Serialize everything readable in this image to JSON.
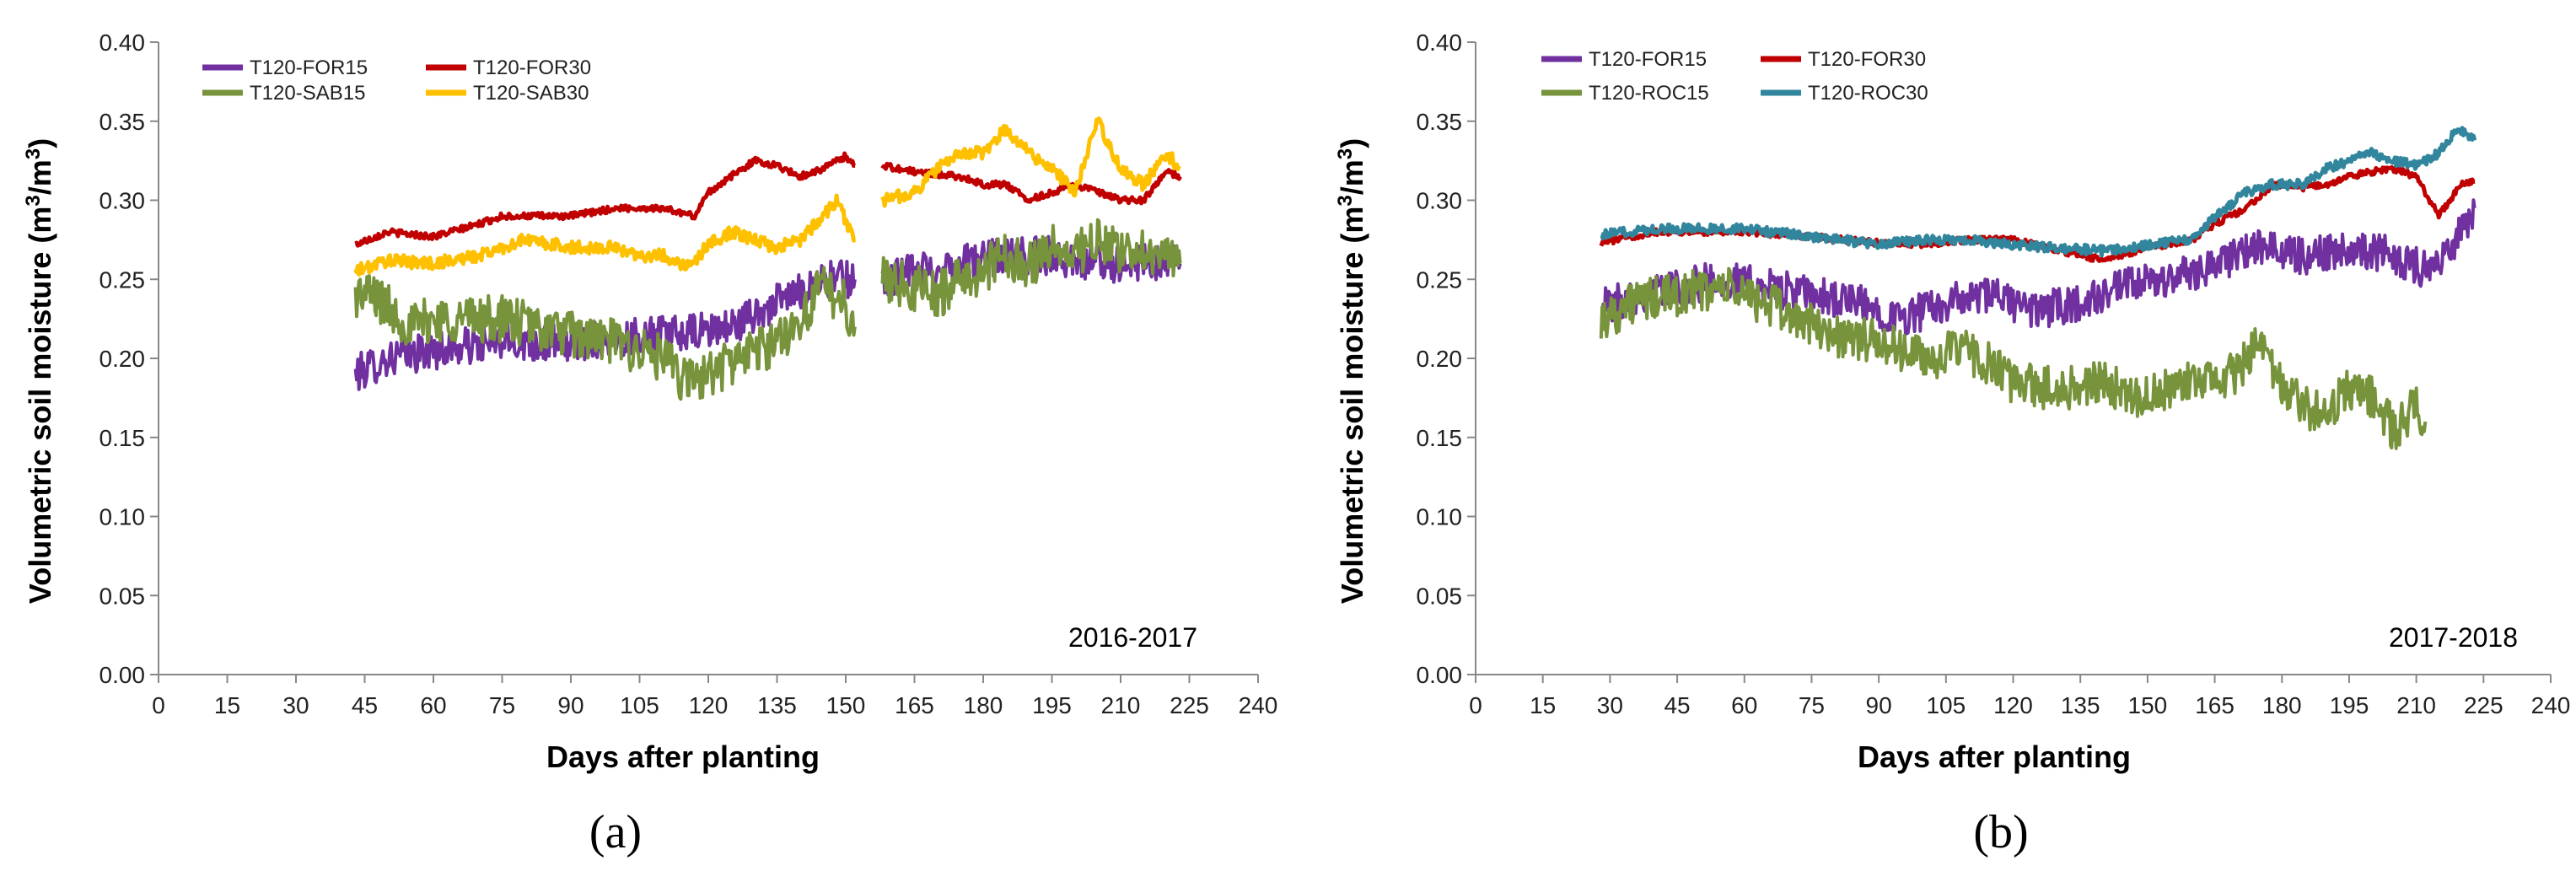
{
  "chart_data": [
    {
      "type": "line",
      "id": "a",
      "panel_label_text": "(a)",
      "annotation": "2016-2017",
      "xlabel": "Days after planting",
      "ylabel": "Volumetric soil moisture (m³/m³)",
      "ylabel_parts": {
        "main": "Volumetric  soil moisture  (m",
        "sup1": "3",
        "mid": "/m",
        "sup2": "3",
        "end": ")"
      },
      "xlim": [
        0,
        240
      ],
      "ylim": [
        0,
        0.4
      ],
      "x_ticks": [
        "0",
        "15",
        "30",
        "45",
        "60",
        "75",
        "90",
        "105",
        "120",
        "135",
        "150",
        "165",
        "180",
        "195",
        "210",
        "225",
        "240"
      ],
      "y_ticks": [
        "0.00",
        "0.05",
        "0.10",
        "0.15",
        "0.20",
        "0.25",
        "0.30",
        "0.35",
        "0.40"
      ],
      "legend": [
        "T120-FOR15",
        "T120-FOR30",
        "T120-SAB15",
        "T120-SAB30"
      ],
      "series": [
        {
          "name": "T120-FOR15",
          "color": "#7030a0",
          "amp": 0.012,
          "segments": [
            [
              [
                43,
                0.19
              ],
              [
                50,
                0.2
              ],
              [
                60,
                0.205
              ],
              [
                75,
                0.21
              ],
              [
                90,
                0.21
              ],
              [
                105,
                0.215
              ],
              [
                115,
                0.215
              ],
              [
                125,
                0.22
              ],
              [
                135,
                0.235
              ],
              [
                145,
                0.25
              ],
              [
                152,
                0.25
              ]
            ],
            [
              [
                158,
                0.25
              ],
              [
                165,
                0.255
              ],
              [
                175,
                0.26
              ],
              [
                185,
                0.265
              ],
              [
                195,
                0.265
              ],
              [
                205,
                0.26
              ],
              [
                215,
                0.26
              ],
              [
                223,
                0.26
              ]
            ]
          ]
        },
        {
          "name": "T120-FOR30",
          "color": "#c00000",
          "amp": 0.002,
          "segments": [
            [
              [
                43,
                0.272
              ],
              [
                50,
                0.28
              ],
              [
                60,
                0.277
              ],
              [
                70,
                0.285
              ],
              [
                75,
                0.29
              ],
              [
                90,
                0.29
              ],
              [
                100,
                0.295
              ],
              [
                110,
                0.295
              ],
              [
                117,
                0.29
              ],
              [
                120,
                0.305
              ],
              [
                125,
                0.315
              ],
              [
                130,
                0.325
              ],
              [
                135,
                0.322
              ],
              [
                140,
                0.315
              ],
              [
                145,
                0.32
              ],
              [
                150,
                0.328
              ],
              [
                152,
                0.322
              ]
            ],
            [
              [
                158,
                0.322
              ],
              [
                165,
                0.318
              ],
              [
                175,
                0.315
              ],
              [
                180,
                0.31
              ],
              [
                185,
                0.31
              ],
              [
                190,
                0.3
              ],
              [
                195,
                0.305
              ],
              [
                200,
                0.31
              ],
              [
                205,
                0.305
              ],
              [
                210,
                0.3
              ],
              [
                215,
                0.3
              ],
              [
                220,
                0.318
              ],
              [
                223,
                0.315
              ]
            ]
          ]
        },
        {
          "name": "T120-SAB15",
          "color": "#77933c",
          "amp": 0.015,
          "segments": [
            [
              [
                43,
                0.24
              ],
              [
                47,
                0.24
              ],
              [
                55,
                0.22
              ],
              [
                60,
                0.225
              ],
              [
                75,
                0.225
              ],
              [
                90,
                0.215
              ],
              [
                100,
                0.21
              ],
              [
                110,
                0.2
              ],
              [
                115,
                0.185
              ],
              [
                120,
                0.19
              ],
              [
                130,
                0.205
              ],
              [
                135,
                0.21
              ],
              [
                140,
                0.225
              ],
              [
                145,
                0.245
              ],
              [
                150,
                0.235
              ],
              [
                152,
                0.22
              ]
            ],
            [
              [
                158,
                0.25
              ],
              [
                165,
                0.245
              ],
              [
                170,
                0.24
              ],
              [
                175,
                0.25
              ],
              [
                180,
                0.255
              ],
              [
                185,
                0.265
              ],
              [
                190,
                0.26
              ],
              [
                195,
                0.27
              ],
              [
                200,
                0.265
              ],
              [
                205,
                0.275
              ],
              [
                210,
                0.265
              ],
              [
                215,
                0.27
              ],
              [
                220,
                0.265
              ],
              [
                223,
                0.26
              ]
            ]
          ]
        },
        {
          "name": "T120-SAB30",
          "color": "#ffc000",
          "amp": 0.004,
          "segments": [
            [
              [
                43,
                0.255
              ],
              [
                50,
                0.262
              ],
              [
                60,
                0.26
              ],
              [
                70,
                0.265
              ],
              [
                80,
                0.275
              ],
              [
                90,
                0.27
              ],
              [
                100,
                0.27
              ],
              [
                105,
                0.265
              ],
              [
                110,
                0.265
              ],
              [
                116,
                0.258
              ],
              [
                120,
                0.272
              ],
              [
                125,
                0.28
              ],
              [
                130,
                0.275
              ],
              [
                135,
                0.27
              ],
              [
                140,
                0.275
              ],
              [
                145,
                0.29
              ],
              [
                148,
                0.3
              ],
              [
                152,
                0.275
              ]
            ],
            [
              [
                158,
                0.3
              ],
              [
                165,
                0.305
              ],
              [
                170,
                0.32
              ],
              [
                175,
                0.33
              ],
              [
                180,
                0.33
              ],
              [
                185,
                0.345
              ],
              [
                190,
                0.33
              ],
              [
                195,
                0.32
              ],
              [
                200,
                0.305
              ],
              [
                205,
                0.35
              ],
              [
                210,
                0.32
              ],
              [
                215,
                0.31
              ],
              [
                220,
                0.33
              ],
              [
                223,
                0.32
              ]
            ]
          ]
        }
      ]
    },
    {
      "type": "line",
      "id": "b",
      "panel_label_text": "(b)",
      "annotation": "2017-2018",
      "xlabel": "Days after planting",
      "ylabel": "Volumetric soil moisture (m³/m³)",
      "ylabel_parts": {
        "main": "Volumetric  soil moisture  (m",
        "sup1": "3",
        "mid": "/m",
        "sup2": "3",
        "end": ")"
      },
      "xlim": [
        0,
        240
      ],
      "ylim": [
        0,
        0.4
      ],
      "x_ticks": [
        "0",
        "15",
        "30",
        "45",
        "60",
        "75",
        "90",
        "105",
        "120",
        "135",
        "150",
        "165",
        "180",
        "195",
        "210",
        "225",
        "240"
      ],
      "y_ticks": [
        "0.00",
        "0.05",
        "0.10",
        "0.15",
        "0.20",
        "0.25",
        "0.30",
        "0.35",
        "0.40"
      ],
      "legend": [
        "T120-FOR15",
        "T120-FOR30",
        "T120-ROC15",
        "T120-ROC30"
      ],
      "series": [
        {
          "name": "T120-FOR15",
          "color": "#7030a0",
          "amp": 0.012,
          "segments": [
            [
              [
                28,
                0.232
              ],
              [
                35,
                0.24
              ],
              [
                45,
                0.245
              ],
              [
                55,
                0.25
              ],
              [
                65,
                0.245
              ],
              [
                75,
                0.24
              ],
              [
                85,
                0.235
              ],
              [
                95,
                0.225
              ],
              [
                105,
                0.235
              ],
              [
                115,
                0.24
              ],
              [
                125,
                0.23
              ],
              [
                135,
                0.235
              ],
              [
                145,
                0.245
              ],
              [
                155,
                0.25
              ],
              [
                165,
                0.26
              ],
              [
                175,
                0.27
              ],
              [
                185,
                0.265
              ],
              [
                195,
                0.27
              ],
              [
                205,
                0.265
              ],
              [
                213,
                0.255
              ],
              [
                218,
                0.27
              ],
              [
                223,
                0.295
              ]
            ]
          ]
        },
        {
          "name": "T120-FOR30",
          "color": "#c00000",
          "amp": 0.002,
          "segments": [
            [
              [
                28,
                0.273
              ],
              [
                40,
                0.28
              ],
              [
                60,
                0.28
              ],
              [
                75,
                0.277
              ],
              [
                90,
                0.273
              ],
              [
                100,
                0.272
              ],
              [
                110,
                0.275
              ],
              [
                120,
                0.275
              ],
              [
                135,
                0.265
              ],
              [
                140,
                0.262
              ],
              [
                150,
                0.27
              ],
              [
                160,
                0.275
              ],
              [
                165,
                0.285
              ],
              [
                172,
                0.295
              ],
              [
                178,
                0.31
              ],
              [
                185,
                0.308
              ],
              [
                190,
                0.31
              ],
              [
                195,
                0.315
              ],
              [
                200,
                0.318
              ],
              [
                205,
                0.32
              ],
              [
                210,
                0.315
              ],
              [
                215,
                0.29
              ],
              [
                220,
                0.31
              ],
              [
                223,
                0.312
              ]
            ]
          ]
        },
        {
          "name": "T120-ROC15",
          "color": "#77933c",
          "amp": 0.014,
          "segments": [
            [
              [
                28,
                0.225
              ],
              [
                35,
                0.235
              ],
              [
                45,
                0.24
              ],
              [
                55,
                0.245
              ],
              [
                65,
                0.235
              ],
              [
                72,
                0.225
              ],
              [
                80,
                0.215
              ],
              [
                90,
                0.21
              ],
              [
                100,
                0.2
              ],
              [
                110,
                0.205
              ],
              [
                120,
                0.185
              ],
              [
                130,
                0.18
              ],
              [
                140,
                0.185
              ],
              [
                150,
                0.175
              ],
              [
                160,
                0.185
              ],
              [
                170,
                0.19
              ],
              [
                175,
                0.21
              ],
              [
                180,
                0.18
              ],
              [
                185,
                0.17
              ],
              [
                190,
                0.165
              ],
              [
                195,
                0.18
              ],
              [
                200,
                0.175
              ],
              [
                205,
                0.155
              ],
              [
                210,
                0.17
              ],
              [
                212,
                0.16
              ]
            ]
          ]
        },
        {
          "name": "T120-ROC30",
          "color": "#31859c",
          "amp": 0.003,
          "segments": [
            [
              [
                28,
                0.278
              ],
              [
                40,
                0.282
              ],
              [
                60,
                0.282
              ],
              [
                75,
                0.277
              ],
              [
                90,
                0.272
              ],
              [
                100,
                0.275
              ],
              [
                110,
                0.275
              ],
              [
                120,
                0.272
              ],
              [
                130,
                0.27
              ],
              [
                140,
                0.268
              ],
              [
                150,
                0.272
              ],
              [
                160,
                0.275
              ],
              [
                165,
                0.29
              ],
              [
                172,
                0.305
              ],
              [
                178,
                0.31
              ],
              [
                185,
                0.31
              ],
              [
                190,
                0.32
              ],
              [
                195,
                0.325
              ],
              [
                200,
                0.33
              ],
              [
                205,
                0.325
              ],
              [
                210,
                0.322
              ],
              [
                215,
                0.33
              ],
              [
                219,
                0.345
              ],
              [
                223,
                0.338
              ]
            ]
          ]
        }
      ]
    }
  ]
}
